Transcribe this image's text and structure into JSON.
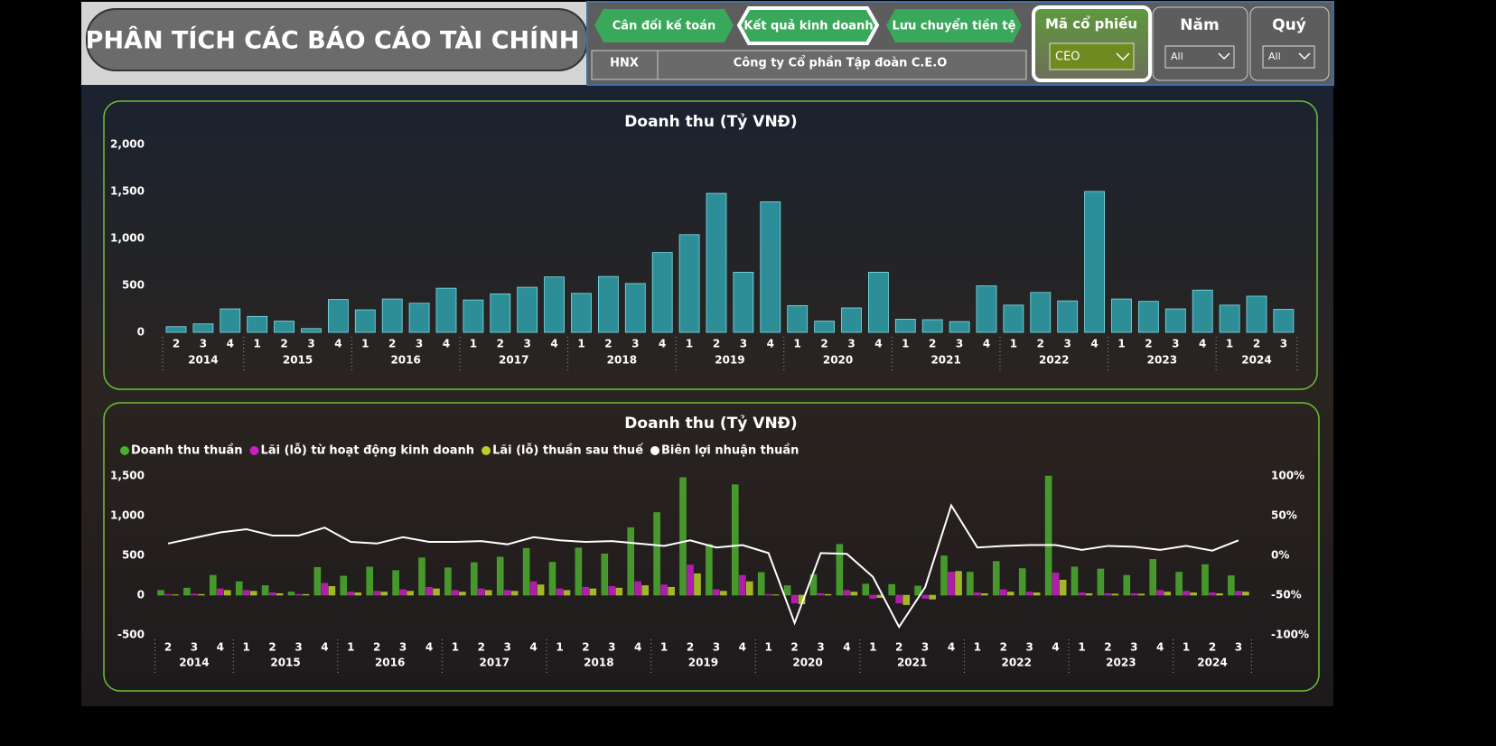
{
  "header": {
    "title": "PHÂN TÍCH CÁC BÁO CÁO TÀI CHÍNH",
    "tabs": [
      "Cân đối kế toán",
      "Kết quả kinh doanh",
      "Lưu chuyển tiền tệ"
    ],
    "exchange": "HNX",
    "company": "Công ty Cổ phần Tập đoàn C.E.O",
    "slicers": [
      {
        "label": "Mã cổ phiếu",
        "value": "CEO"
      },
      {
        "label": "Năm",
        "value": "All"
      },
      {
        "label": "Quý",
        "value": "All"
      }
    ]
  },
  "chart_data": [
    {
      "type": "bar",
      "title": "Doanh thu (Tỷ VNĐ)",
      "categories": [
        "2",
        "3",
        "4",
        "1",
        "2",
        "3",
        "4",
        "1",
        "2",
        "3",
        "4",
        "1",
        "2",
        "3",
        "4",
        "1",
        "2",
        "3",
        "4",
        "1",
        "2",
        "3",
        "4",
        "1",
        "2",
        "3",
        "4",
        "1",
        "2",
        "3",
        "4",
        "1",
        "2",
        "3",
        "4",
        "1",
        "2",
        "3",
        "4",
        "1",
        "2",
        "3"
      ],
      "groups": [
        "2014",
        "2015",
        "2016",
        "2017",
        "2018",
        "2019",
        "2020",
        "2021",
        "2022",
        "2023",
        "2024"
      ],
      "values": [
        60,
        90,
        250,
        170,
        120,
        40,
        350,
        240,
        355,
        310,
        470,
        345,
        410,
        480,
        590,
        415,
        595,
        520,
        850,
        1040,
        1480,
        640,
        1390,
        285,
        120,
        260,
        640,
        140,
        135,
        115,
        495,
        290,
        425,
        335,
        1500,
        355,
        330,
        250,
        450,
        290,
        385,
        245
      ],
      "color": "#2fa9b5",
      "ylim": [
        0,
        2000
      ],
      "yticks": [
        0,
        500,
        {
          "value": 1000,
          "label": "1,000"
        },
        {
          "value": 1500,
          "label": "1,500"
        },
        {
          "value": 2000,
          "label": "2,000"
        }
      ]
    },
    {
      "type": "combo",
      "title": "Doanh thu (Tỷ VNĐ)",
      "categories": [
        "2",
        "3",
        "4",
        "1",
        "2",
        "3",
        "4",
        "1",
        "2",
        "3",
        "4",
        "1",
        "2",
        "3",
        "4",
        "1",
        "2",
        "3",
        "4",
        "1",
        "2",
        "3",
        "4",
        "1",
        "2",
        "3",
        "4",
        "1",
        "2",
        "3",
        "4",
        "1",
        "2",
        "3",
        "4",
        "1",
        "2",
        "3",
        "4",
        "1",
        "2",
        "3"
      ],
      "groups": [
        "2014",
        "2015",
        "2016",
        "2017",
        "2018",
        "2019",
        "2020",
        "2021",
        "2022",
        "2023",
        "2024"
      ],
      "series": [
        {
          "name": "Doanh thu thuần",
          "color": "#4cae2f",
          "kind": "bar",
          "values": [
            60,
            90,
            250,
            170,
            120,
            40,
            350,
            240,
            355,
            310,
            470,
            345,
            410,
            480,
            590,
            415,
            595,
            520,
            850,
            1040,
            1480,
            640,
            1390,
            285,
            120,
            260,
            640,
            140,
            135,
            115,
            495,
            290,
            425,
            335,
            1500,
            355,
            330,
            250,
            450,
            290,
            385,
            245
          ]
        },
        {
          "name": "Lãi (lỗ) từ hoạt động kinh doanh",
          "color": "#c81fc1",
          "kind": "bar",
          "values": [
            10,
            15,
            80,
            60,
            30,
            10,
            150,
            40,
            50,
            70,
            100,
            60,
            80,
            60,
            170,
            80,
            100,
            110,
            170,
            130,
            380,
            70,
            250,
            10,
            -100,
            20,
            60,
            -40,
            -100,
            -40,
            290,
            30,
            70,
            40,
            280,
            30,
            20,
            20,
            60,
            50,
            30,
            50
          ]
        },
        {
          "name": "Lãi (lỗ) thuần sau thuế",
          "color": "#b9cf2a",
          "kind": "bar",
          "values": [
            5,
            10,
            60,
            50,
            20,
            10,
            110,
            30,
            40,
            50,
            80,
            40,
            60,
            50,
            130,
            60,
            80,
            90,
            120,
            100,
            270,
            50,
            170,
            5,
            -110,
            10,
            40,
            -30,
            -120,
            -50,
            300,
            20,
            40,
            30,
            190,
            20,
            15,
            15,
            40,
            30,
            20,
            40
          ]
        },
        {
          "name": "Biên lợi nhuận thuần",
          "color": "#ffffff",
          "kind": "line",
          "axis": "y2",
          "values": [
            15,
            22,
            29,
            33,
            25,
            25,
            35,
            17,
            15,
            23,
            17,
            17,
            18,
            14,
            23,
            19,
            17,
            18,
            15,
            12,
            19,
            10,
            13,
            3,
            -85,
            3,
            2,
            -27,
            -90,
            -40,
            63,
            10,
            12,
            13,
            13,
            7,
            12,
            11,
            7,
            12,
            6,
            19
          ]
        }
      ],
      "ylim": [
        -500,
        1500
      ],
      "yticks": [
        -500,
        0,
        500,
        {
          "value": 1000,
          "label": "1,000"
        },
        {
          "value": 1500,
          "label": "1,500"
        }
      ],
      "y2lim": [
        -100,
        100
      ],
      "y2ticks": [
        {
          "value": -100,
          "label": "-100%"
        },
        {
          "value": -50,
          "label": "-50%"
        },
        {
          "value": 0,
          "label": "0%"
        },
        {
          "value": 50,
          "label": "50%"
        },
        {
          "value": 100,
          "label": "100%"
        }
      ]
    }
  ]
}
